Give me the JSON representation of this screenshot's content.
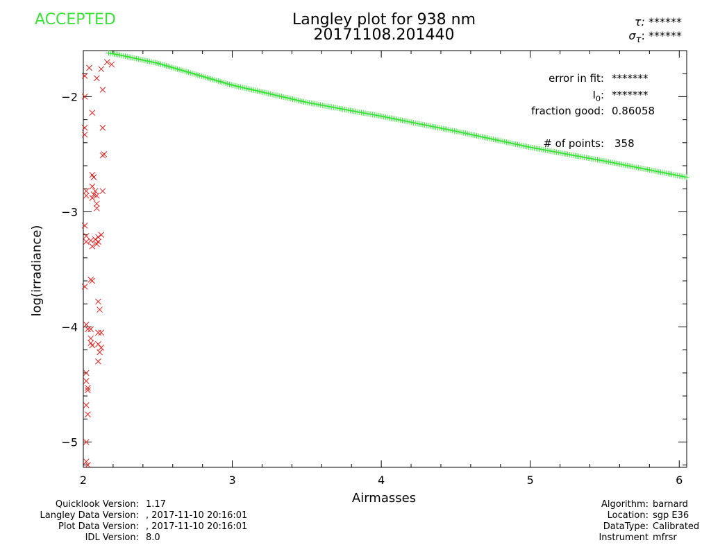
{
  "status": "ACCEPTED",
  "title_line1": "Langley plot for 938 nm",
  "title_line2": "20171108.201440",
  "tau_label": "τ:",
  "tau_value": "******",
  "sigma_tau_label": "σ",
  "sigma_tau_sub": "τ",
  "sigma_tau_value": "******",
  "stats": {
    "error_label": "error in fit:",
    "error_value": "*******",
    "i0_label": "I",
    "i0_sub": "0",
    "i0_value": "*******",
    "fraction_label": "fraction good:",
    "fraction_value": "0.86058",
    "points_label": "# of points:",
    "points_value": "358"
  },
  "footer_left": [
    {
      "label": "Quicklook Version:",
      "value": "1.17"
    },
    {
      "label": "Langley Data Version:",
      "value": ", 2017-11-10 20:16:01"
    },
    {
      "label": "Plot Data Version:",
      "value": ", 2017-11-10 20:16:01"
    },
    {
      "label": "IDL Version:",
      "value": "8.0"
    }
  ],
  "footer_right": [
    {
      "label": "Algorithm:",
      "value": "barnard"
    },
    {
      "label": "Location:",
      "value": "sgp E36"
    },
    {
      "label": "DataType:",
      "value": "Calibrated"
    },
    {
      "label": "Instrument",
      "value": "mfrsr"
    }
  ],
  "colors": {
    "accepted": "#3ce03c",
    "rejected": "#e02020",
    "axis": "#000000"
  },
  "chart_data": {
    "type": "scatter",
    "xlabel": "Airmasses",
    "ylabel": "log(irradiance)",
    "xlim": [
      2,
      6.05
    ],
    "ylim": [
      -5.22,
      -1.6
    ],
    "x_ticks": [
      2,
      3,
      4,
      5,
      6
    ],
    "y_ticks": [
      -5,
      -4,
      -3,
      -2
    ],
    "good_line": {
      "x_start": 2.17,
      "x_end": 6.05,
      "count": 312,
      "knots": [
        [
          2.17,
          -1.62
        ],
        [
          2.25,
          -1.64
        ],
        [
          2.5,
          -1.71
        ],
        [
          3.0,
          -1.9
        ],
        [
          3.5,
          -2.05
        ],
        [
          4.0,
          -2.17
        ],
        [
          4.5,
          -2.3
        ],
        [
          5.0,
          -2.44
        ],
        [
          5.5,
          -2.56
        ],
        [
          6.05,
          -2.7
        ]
      ]
    },
    "series": [
      {
        "name": "",
        "marker": "x",
        "color": "#e02020",
        "points": [
          [
            2.01,
            -1.82
          ],
          [
            2.01,
            -2.0
          ],
          [
            2.01,
            -2.27
          ],
          [
            2.01,
            -2.33
          ],
          [
            2.02,
            -2.82
          ],
          [
            2.02,
            -2.86
          ],
          [
            2.01,
            -3.12
          ],
          [
            2.02,
            -3.21
          ],
          [
            2.02,
            -3.26
          ],
          [
            2.01,
            -3.65
          ],
          [
            2.02,
            -3.98
          ],
          [
            2.03,
            -4.02
          ],
          [
            2.02,
            -4.4
          ],
          [
            2.02,
            -4.47
          ],
          [
            2.03,
            -4.53
          ],
          [
            2.03,
            -4.55
          ],
          [
            2.02,
            -4.68
          ],
          [
            2.03,
            -4.76
          ],
          [
            2.02,
            -5.0
          ],
          [
            2.02,
            -5.17
          ],
          [
            2.03,
            -5.2
          ],
          [
            2.04,
            -1.75
          ],
          [
            2.06,
            -2.14
          ],
          [
            2.06,
            -2.68
          ],
          [
            2.07,
            -2.7
          ],
          [
            2.06,
            -2.78
          ],
          [
            2.07,
            -2.85
          ],
          [
            2.06,
            -2.88
          ],
          [
            2.05,
            -3.25
          ],
          [
            2.06,
            -3.3
          ],
          [
            2.05,
            -3.59
          ],
          [
            2.06,
            -3.6
          ],
          [
            2.05,
            -4.02
          ],
          [
            2.05,
            -4.14
          ],
          [
            2.06,
            -4.16
          ],
          [
            2.05,
            -4.1
          ],
          [
            2.09,
            -1.84
          ],
          [
            2.08,
            -2.82
          ],
          [
            2.09,
            -2.86
          ],
          [
            2.09,
            -2.93
          ],
          [
            2.09,
            -2.97
          ],
          [
            2.08,
            -3.24
          ],
          [
            2.09,
            -3.28
          ],
          [
            2.1,
            -3.22
          ],
          [
            2.1,
            -3.26
          ],
          [
            2.1,
            -3.78
          ],
          [
            2.11,
            -3.85
          ],
          [
            2.1,
            -4.05
          ],
          [
            2.1,
            -4.15
          ],
          [
            2.11,
            -4.22
          ],
          [
            2.1,
            -4.3
          ],
          [
            2.12,
            -1.76
          ],
          [
            2.13,
            -1.94
          ],
          [
            2.13,
            -2.27
          ],
          [
            2.14,
            -2.5
          ],
          [
            2.13,
            -2.51
          ],
          [
            2.13,
            -2.82
          ],
          [
            2.12,
            -3.2
          ],
          [
            2.12,
            -4.05
          ],
          [
            2.12,
            -4.18
          ],
          [
            2.16,
            -1.7
          ],
          [
            2.19,
            -1.72
          ]
        ]
      }
    ]
  }
}
